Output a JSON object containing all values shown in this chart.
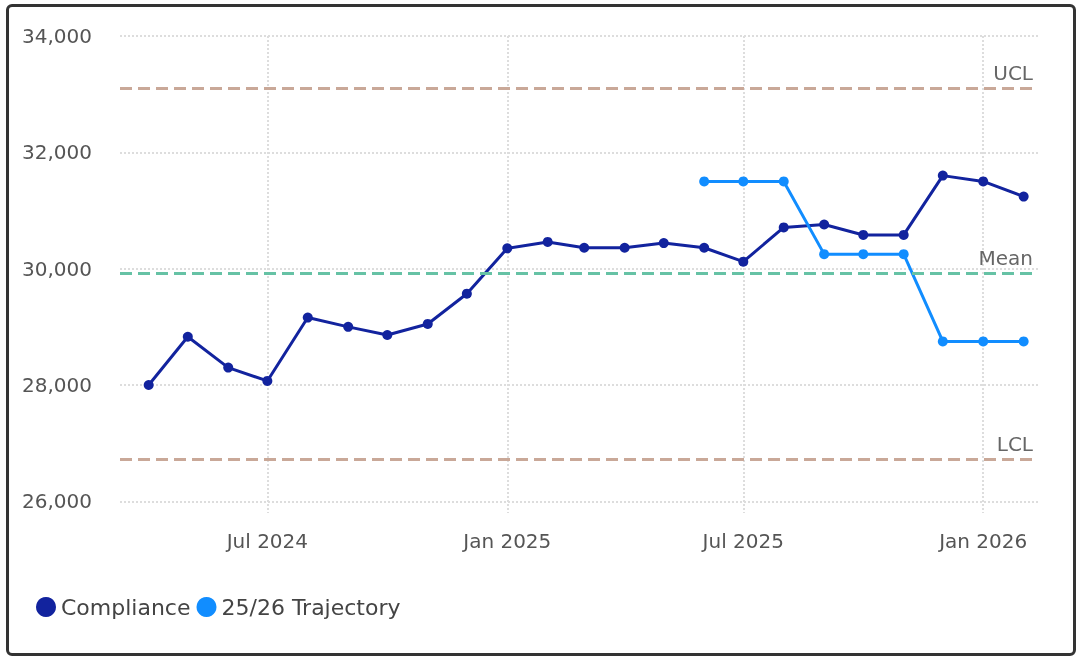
{
  "chart_data": {
    "type": "line",
    "x": [
      "2024-04",
      "2024-05",
      "2024-06",
      "2024-07",
      "2024-08",
      "2024-09",
      "2024-10",
      "2024-11",
      "2024-12",
      "2025-01",
      "2025-02",
      "2025-03",
      "2025-04",
      "2025-05",
      "2025-06",
      "2025-07",
      "2025-08",
      "2025-09",
      "2025-10",
      "2025-11",
      "2025-12",
      "2026-01",
      "2026-02"
    ],
    "series": [
      {
        "name": "Compliance",
        "color": "#12239e",
        "values": [
          28000,
          28830,
          28300,
          28070,
          29160,
          29000,
          28860,
          29050,
          29570,
          30350,
          30460,
          30360,
          30360,
          30440,
          30360,
          30120,
          30710,
          30760,
          30580,
          30580,
          31600,
          31500,
          31240
        ]
      },
      {
        "name": "25/26 Trajectory",
        "color": "#118dff",
        "x": [
          "2025-06",
          "2025-07",
          "2025-08",
          "2025-09",
          "2025-10",
          "2025-11",
          "2025-12",
          "2026-01",
          "2026-02"
        ],
        "values": [
          31500,
          31500,
          31500,
          30250,
          30250,
          30250,
          28750,
          28750,
          28750
        ]
      }
    ],
    "xlim": [
      "2024-03-10",
      "2026-02-12"
    ],
    "xticks": [
      {
        "value": "2024-07",
        "label": "Jul 2024"
      },
      {
        "value": "2025-01",
        "label": "Jan 2025"
      },
      {
        "value": "2025-07",
        "label": "Jul 2025"
      },
      {
        "value": "2026-01",
        "label": "Jan 2026"
      }
    ],
    "ylim": [
      25800,
      34000
    ],
    "yticks": [
      {
        "value": 26000,
        "label": "26,000"
      },
      {
        "value": 28000,
        "label": "28,000"
      },
      {
        "value": 30000,
        "label": "30,000"
      },
      {
        "value": 32000,
        "label": "32,000"
      },
      {
        "value": 34000,
        "label": "34,000"
      }
    ],
    "ref_lines": [
      {
        "axis": "y",
        "value": 33100,
        "label": "UCL",
        "color": "#c9a898",
        "line_style": "dashed"
      },
      {
        "axis": "y",
        "value": 29930,
        "label": "Mean",
        "color": "#66c2a5",
        "line_style": "dashed"
      },
      {
        "axis": "y",
        "value": 26720,
        "label": "LCL",
        "color": "#c9a898",
        "line_style": "dashed"
      }
    ],
    "grid": true,
    "legend": "bottom left",
    "marker": "circle",
    "line_style": "solid"
  }
}
